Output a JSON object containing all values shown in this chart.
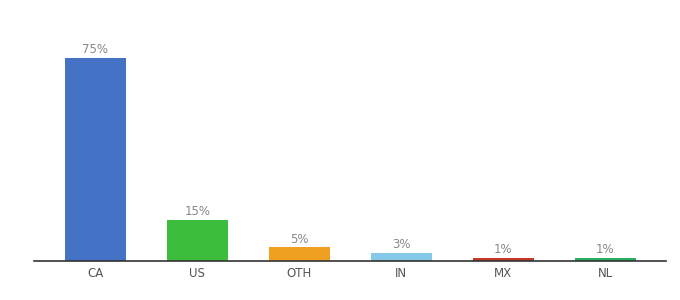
{
  "categories": [
    "CA",
    "US",
    "OTH",
    "IN",
    "MX",
    "NL"
  ],
  "values": [
    75,
    15,
    5,
    3,
    1,
    1
  ],
  "labels": [
    "75%",
    "15%",
    "5%",
    "3%",
    "1%",
    "1%"
  ],
  "bar_colors": [
    "#4472C4",
    "#3DBD3D",
    "#F0A020",
    "#85C8E8",
    "#C0392B",
    "#27AE60"
  ],
  "ylim": [
    0,
    83
  ],
  "background_color": "#ffffff",
  "label_color": "#888888",
  "label_fontsize": 8.5,
  "tick_fontsize": 8.5,
  "tick_color": "#555555",
  "bar_width": 0.6,
  "spine_color": "#333333"
}
